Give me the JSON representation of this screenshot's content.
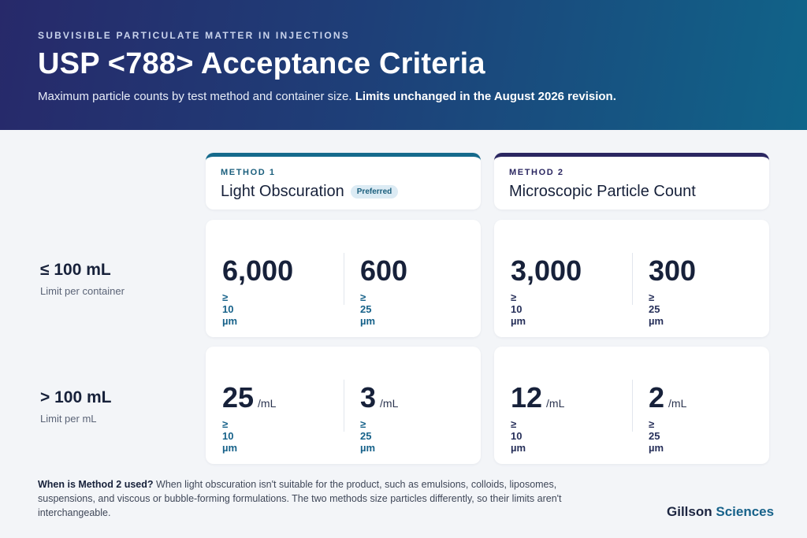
{
  "header": {
    "eyebrow": "SUBVISIBLE PARTICULATE MATTER IN INJECTIONS",
    "title": "USP <788> Acceptance Criteria",
    "subtitle_lead": "Maximum particle counts by test method and container size.",
    "subtitle_bold": "Limits unchanged in the August 2026 revision."
  },
  "methods": [
    {
      "label": "METHOD 1",
      "name": "Light Obscuration",
      "badge": "Preferred"
    },
    {
      "label": "METHOD 2",
      "name": "Microscopic Particle Count",
      "badge": ""
    }
  ],
  "rows": [
    {
      "title": "≤ 100 mL",
      "subtitle": "Limit per container",
      "values": [
        [
          {
            "num": "6,000",
            "unit": "",
            "size": "≥ 10 µm"
          },
          {
            "num": "600",
            "unit": "",
            "size": "≥ 25 µm"
          }
        ],
        [
          {
            "num": "3,000",
            "unit": "",
            "size": "≥ 10 µm"
          },
          {
            "num": "300",
            "unit": "",
            "size": "≥ 25 µm"
          }
        ]
      ]
    },
    {
      "title": "> 100 mL",
      "subtitle": "Limit per mL",
      "values": [
        [
          {
            "num": "25",
            "unit": "/mL",
            "size": "≥ 10 µm"
          },
          {
            "num": "3",
            "unit": "/mL",
            "size": "≥ 25 µm"
          }
        ],
        [
          {
            "num": "12",
            "unit": "/mL",
            "size": "≥ 10 µm"
          },
          {
            "num": "2",
            "unit": "/mL",
            "size": "≥ 25 µm"
          }
        ]
      ]
    }
  ],
  "footnote": {
    "lead": "When is Method 2 used?",
    "body": "When light obscuration isn't suitable for the product, such as emulsions, colloids, liposomes, suspensions, and viscous or bubble-forming formulations. The two methods size particles differently, so their limits aren't interchangeable."
  },
  "brand": {
    "part1": "Gillson",
    "part2": "Sciences"
  },
  "colors": {
    "header_start": "#27296a",
    "header_end": "#106489",
    "method1_accent": "#156a8c",
    "method2_accent": "#2b2761",
    "size_label": "#17628a"
  }
}
